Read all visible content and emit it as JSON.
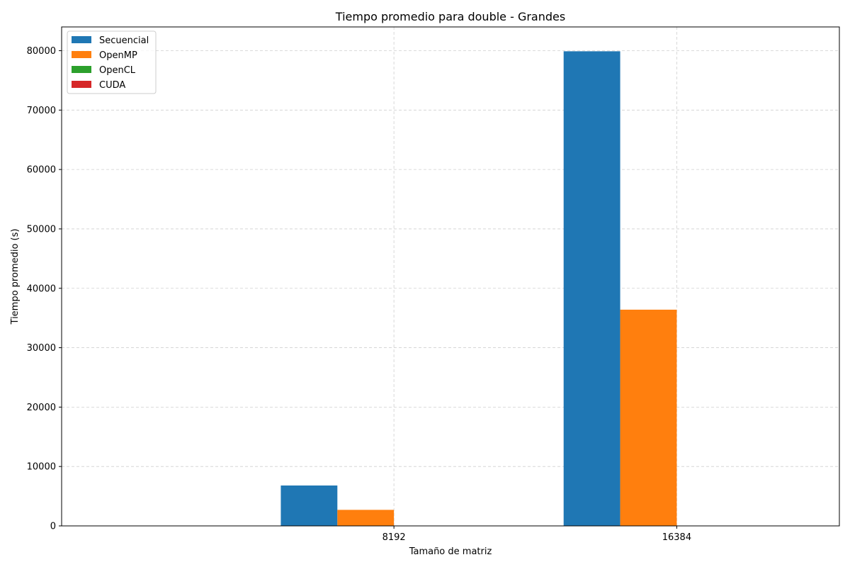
{
  "chart_data": {
    "type": "bar",
    "title": "Tiempo promedio para double - Grandes",
    "xlabel": "Tamaño de matriz",
    "ylabel": "Tiempo promedio (s)",
    "categories": [
      "8192",
      "16384"
    ],
    "ylim": [
      0,
      84000
    ],
    "yticks": [
      0,
      10000,
      20000,
      30000,
      40000,
      50000,
      60000,
      70000,
      80000
    ],
    "grid": true,
    "legend_position": "top-left",
    "series": [
      {
        "name": "Secuencial",
        "color": "#1f77b4",
        "values": [
          6800,
          79900
        ]
      },
      {
        "name": "OpenMP",
        "color": "#ff7f0e",
        "values": [
          2700,
          36400
        ]
      },
      {
        "name": "OpenCL",
        "color": "#2ca02c",
        "values": [
          0,
          0
        ]
      },
      {
        "name": "CUDA",
        "color": "#d62728",
        "values": [
          0,
          0
        ]
      }
    ]
  }
}
